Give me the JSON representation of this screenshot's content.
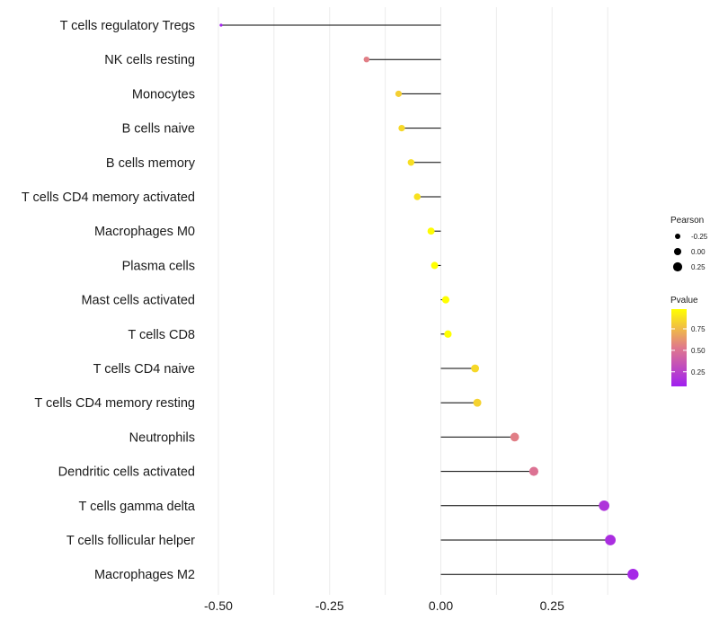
{
  "chart_data": {
    "type": "lollipop",
    "title": "",
    "xlabel": "",
    "ylabel": "",
    "xlim": [
      -0.5,
      0.44
    ],
    "x_ticks": [
      -0.5,
      -0.25,
      0.0,
      0.25
    ],
    "x_tick_labels": [
      "-0.50",
      "-0.25",
      "0.00",
      "0.25"
    ],
    "grid": true,
    "baseline": 0,
    "categories": [
      "T cells regulatory  Tregs",
      "NK cells resting",
      "Monocytes",
      "B cells naive",
      "B cells memory",
      "T cells CD4 memory activated",
      "Macrophages M0",
      "Plasma cells",
      "Mast cells activated",
      "T cells CD8",
      "T cells CD4 naive",
      "T cells CD4 memory resting",
      "Neutrophils",
      "Dendritic cells activated",
      "T cells gamma delta",
      "T cells follicular helper",
      "Macrophages M2"
    ],
    "pearson": [
      -0.494,
      -0.167,
      -0.095,
      -0.088,
      -0.067,
      -0.053,
      -0.022,
      -0.014,
      0.011,
      0.016,
      0.077,
      0.082,
      0.166,
      0.209,
      0.367,
      0.381,
      0.432
    ],
    "pvalue": [
      0.1,
      0.55,
      0.82,
      0.85,
      0.87,
      0.88,
      0.97,
      0.98,
      0.98,
      0.98,
      0.85,
      0.83,
      0.55,
      0.5,
      0.18,
      0.15,
      0.12
    ],
    "legend_size": {
      "title": "Pearson",
      "labels": [
        "-0.25",
        "0.00",
        "0.25"
      ],
      "values": [
        -0.25,
        0.0,
        0.25
      ]
    },
    "legend_color": {
      "title": "Pvalue",
      "labels": [
        "0.75",
        "0.50",
        "0.25"
      ],
      "values": [
        0.75,
        0.5,
        0.25
      ],
      "range": [
        0.08,
        0.98
      ],
      "low_color": "#a020f0",
      "mid_color": "#e0788c",
      "high_color": "#ffff00"
    },
    "placement": {
      "legend": "right"
    }
  }
}
